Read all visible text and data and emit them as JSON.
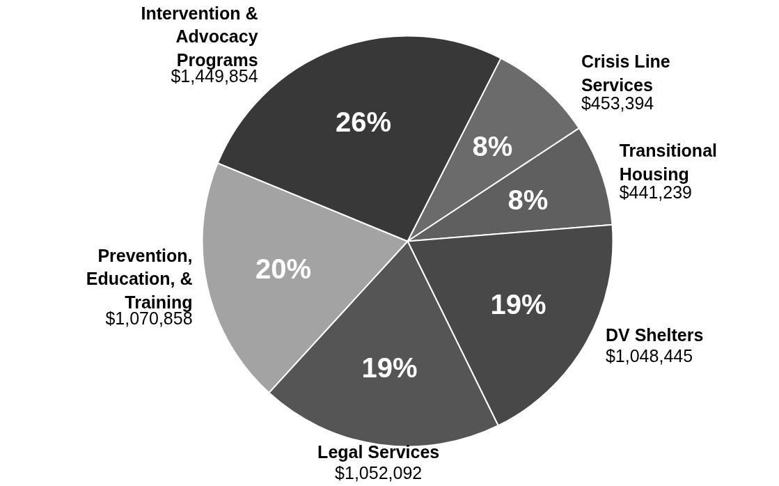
{
  "chart_data": {
    "type": "pie",
    "categories": [
      "Crisis Line\nServices",
      "Transitional\nHousing",
      "DV Shelters",
      "Legal Services",
      "Prevention,\nEducation, &\nTraining",
      "Intervention &\nAdvocacy\nPrograms"
    ],
    "values": [
      453394,
      441239,
      1048445,
      1052092,
      1070858,
      1449854
    ],
    "colors": [
      "#6b6b6b",
      "#5f5f5f",
      "#484848",
      "#555555",
      "#a3a3a3",
      "#383838"
    ],
    "value_labels": [
      "$453,394",
      "$441,239",
      "$1,048,445",
      "$1,052,092",
      "$1,070,858",
      "$1,449,854"
    ],
    "annotations": [
      "8%",
      "8%",
      "19%",
      "19%",
      "20%",
      "26%"
    ]
  }
}
